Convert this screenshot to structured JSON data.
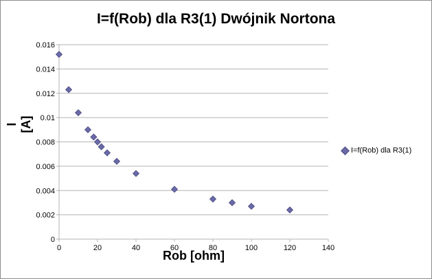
{
  "chart_data": {
    "type": "scatter",
    "title": "I=f(Rob) dla R3(1) Dwójnik Nortona",
    "xlabel": "Rob [ohm]",
    "ylabel": "I [A]",
    "xlim": [
      0,
      140
    ],
    "ylim": [
      0,
      0.016
    ],
    "x_ticks": [
      "0",
      "20",
      "40",
      "60",
      "80",
      "100",
      "120",
      "140"
    ],
    "y_ticks": [
      "0",
      "0.002",
      "0.004",
      "0.006",
      "0.008",
      "0.01",
      "0.012",
      "0.014",
      "0.016"
    ],
    "grid": "horizontal",
    "legend_position": "right",
    "marker_color": "#6a6aa8",
    "series": [
      {
        "name": "I=f(Rob) dla R3(1)",
        "points": [
          {
            "x": 0,
            "y": 0.0152
          },
          {
            "x": 5,
            "y": 0.0123
          },
          {
            "x": 10,
            "y": 0.0104
          },
          {
            "x": 15,
            "y": 0.009
          },
          {
            "x": 18,
            "y": 0.0084
          },
          {
            "x": 20,
            "y": 0.008
          },
          {
            "x": 22,
            "y": 0.0076
          },
          {
            "x": 25,
            "y": 0.0071
          },
          {
            "x": 30,
            "y": 0.0064
          },
          {
            "x": 40,
            "y": 0.0054
          },
          {
            "x": 60,
            "y": 0.0041
          },
          {
            "x": 80,
            "y": 0.0033
          },
          {
            "x": 90,
            "y": 0.003
          },
          {
            "x": 100,
            "y": 0.0027
          },
          {
            "x": 120,
            "y": 0.0024
          }
        ]
      }
    ]
  }
}
